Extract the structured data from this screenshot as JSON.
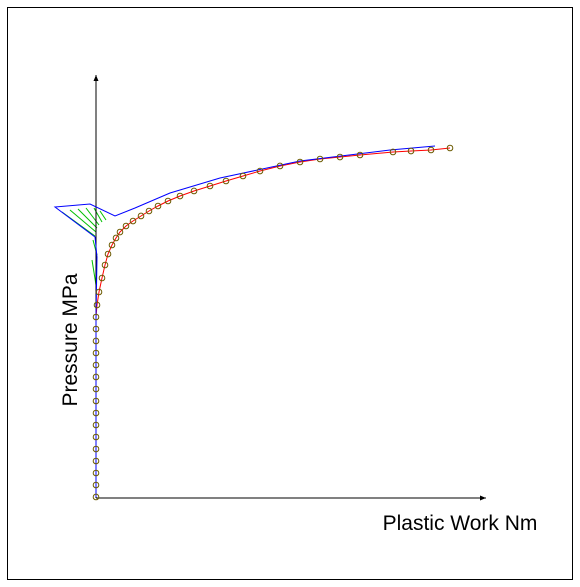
{
  "chart_data": {
    "type": "line",
    "xlabel": "Plastic Work Nm",
    "ylabel": "Pressure MPa",
    "xlim": [
      0,
      100
    ],
    "ylim": [
      0,
      100
    ],
    "series": [
      {
        "color": "#ff0000",
        "marker": "o",
        "marker_color": "#6b5a00",
        "x": [
          0,
          0,
          0,
          0,
          0,
          0,
          0,
          0,
          0,
          0,
          0,
          0,
          0,
          0,
          0,
          0,
          0.26,
          0.77,
          1.54,
          2.31,
          3.08,
          4.1,
          5.13,
          6.15,
          7.69,
          9.49,
          11.54,
          13.59,
          15.9,
          18.46,
          21.54,
          25.13,
          29.23,
          33.33,
          37.69,
          42.05,
          47.18,
          52.31,
          57.44,
          62.56,
          67.69,
          76.15,
          80.77,
          85.9,
          90.77
        ],
        "values": [
          0.24,
          3.07,
          5.91,
          8.75,
          11.58,
          14.42,
          17.26,
          20.09,
          22.93,
          25.77,
          28.61,
          31.44,
          34.28,
          37.12,
          39.95,
          42.79,
          45.63,
          48.7,
          52.01,
          55.08,
          57.68,
          59.81,
          61.47,
          62.88,
          64.3,
          65.48,
          66.67,
          67.85,
          69.03,
          70.21,
          71.39,
          72.58,
          73.76,
          74.94,
          76.12,
          77.3,
          78.49,
          79.43,
          80.14,
          80.61,
          81.09,
          81.8,
          82.03,
          82.27,
          82.74
        ]
      },
      {
        "color": "#0000ff",
        "x": [
          0,
          0,
          0.26,
          -0.26,
          -10.51,
          -1.54,
          4.87,
          10.0,
          18.97,
          31.79,
          52.31,
          75.38,
          86.92
        ],
        "values": [
          0.24,
          42.79,
          56.97,
          61.7,
          68.79,
          69.5,
          66.67,
          68.56,
          72.1,
          75.65,
          79.67,
          82.27,
          83.22
        ]
      }
    ]
  }
}
